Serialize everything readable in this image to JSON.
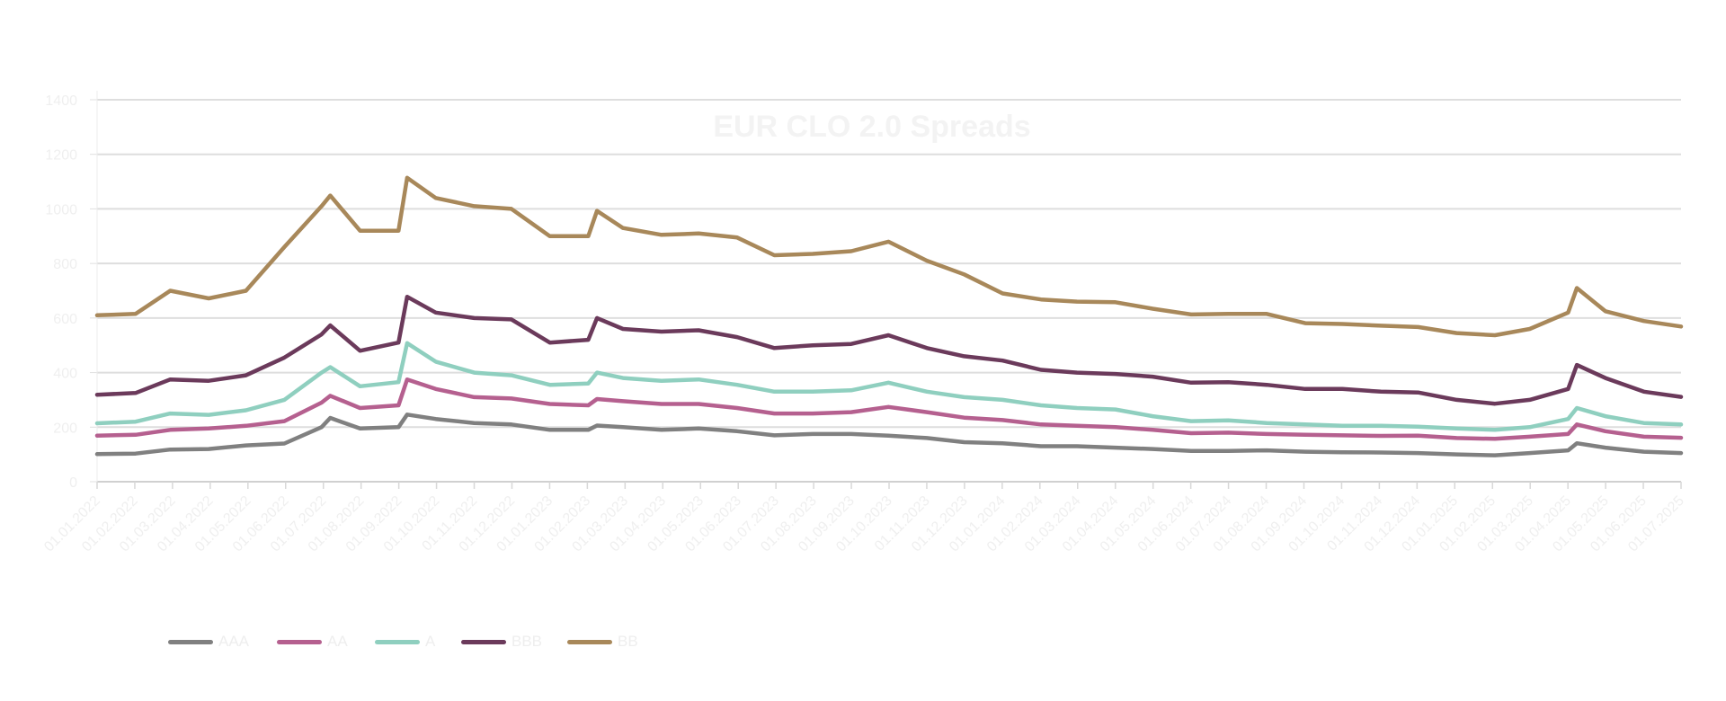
{
  "chart_data": {
    "type": "line",
    "title": "EUR CLO 2.0 Spreads",
    "xlabel": "",
    "ylabel": "",
    "ylim": [
      0,
      1400
    ],
    "yticks": [
      "0",
      "200",
      "400",
      "600",
      "800",
      "1000",
      "1200",
      "1400"
    ],
    "xticks": [
      "01.01.2022",
      "01.02.2022",
      "01.03.2022",
      "01.04.2022",
      "01.05.2022",
      "01.06.2022",
      "01.07.2022",
      "01.08.2022",
      "01.09.2022",
      "01.10.2022",
      "01.11.2022",
      "01.12.2022",
      "01.01.2023",
      "01.02.2023",
      "01.03.2023",
      "01.04.2023",
      "01.05.2023",
      "01.06.2023",
      "01.07.2023",
      "01.08.2023",
      "01.09.2023",
      "01.10.2023",
      "01.11.2023",
      "01.12.2023",
      "01.01.2024",
      "01.02.2024",
      "01.03.2024",
      "01.04.2024",
      "01.05.2024",
      "01.06.2024",
      "01.07.2024",
      "01.08.2024",
      "01.09.2024",
      "01.10.2024",
      "01.11.2024",
      "01.12.2024",
      "01.01.2025",
      "01.02.2025",
      "01.03.2025",
      "01.04.2025",
      "01.05.2025",
      "01.06.2025",
      "01.07.2025"
    ],
    "grid": true,
    "legend_position": "bottom-left",
    "x": [
      "2022-01-01",
      "2022-02-01",
      "2022-03-01",
      "2022-04-01",
      "2022-05-01",
      "2022-06-01",
      "2022-07-01",
      "2022-07-08",
      "2022-08-01",
      "2022-09-01",
      "2022-09-08",
      "2022-10-01",
      "2022-11-01",
      "2022-12-01",
      "2023-01-01",
      "2023-02-01",
      "2023-02-08",
      "2023-03-01",
      "2023-04-01",
      "2023-05-01",
      "2023-06-01",
      "2023-07-01",
      "2023-08-01",
      "2023-09-01",
      "2023-10-01",
      "2023-11-01",
      "2023-12-01",
      "2024-01-01",
      "2024-02-01",
      "2024-03-01",
      "2024-04-01",
      "2024-05-01",
      "2024-06-01",
      "2024-07-01",
      "2024-08-01",
      "2024-09-01",
      "2024-10-01",
      "2024-11-01",
      "2024-12-01",
      "2025-01-01",
      "2025-02-01",
      "2025-03-01",
      "2025-04-01",
      "2025-04-08",
      "2025-05-01",
      "2025-06-01",
      "2025-07-01"
    ],
    "series": [
      {
        "name": "AAA",
        "color": "#808080",
        "values": [
          101,
          103,
          118,
          120,
          133,
          140,
          200,
          234,
          195,
          200,
          246,
          230,
          215,
          210,
          190,
          190,
          206,
          200,
          190,
          195,
          185,
          170,
          175,
          175,
          169,
          160,
          145,
          141,
          130,
          130,
          125,
          120,
          113,
          113,
          115,
          110,
          108,
          107,
          105,
          100,
          97,
          105,
          115,
          141,
          125,
          110,
          105
        ]
      },
      {
        "name": "AA",
        "color": "#b5608f",
        "values": [
          169,
          172,
          190,
          195,
          205,
          222,
          290,
          315,
          270,
          280,
          375,
          340,
          310,
          305,
          285,
          280,
          303,
          295,
          285,
          285,
          270,
          250,
          250,
          255,
          274,
          255,
          235,
          226,
          210,
          205,
          200,
          190,
          178,
          180,
          175,
          172,
          170,
          168,
          169,
          160,
          157,
          165,
          175,
          210,
          185,
          165,
          161
        ]
      },
      {
        "name": "A",
        "color": "#8fcfbf",
        "values": [
          214,
          220,
          250,
          245,
          262,
          300,
          400,
          420,
          350,
          365,
          508,
          440,
          400,
          390,
          355,
          360,
          400,
          380,
          370,
          375,
          355,
          330,
          330,
          335,
          363,
          330,
          310,
          300,
          280,
          270,
          265,
          240,
          222,
          225,
          215,
          210,
          205,
          205,
          202,
          195,
          190,
          200,
          230,
          270,
          240,
          215,
          210
        ]
      },
      {
        "name": "BBB",
        "color": "#6b3a5b",
        "values": [
          319,
          325,
          375,
          370,
          390,
          455,
          540,
          573,
          480,
          510,
          678,
          620,
          600,
          595,
          510,
          520,
          600,
          560,
          550,
          555,
          530,
          490,
          500,
          505,
          537,
          490,
          460,
          444,
          410,
          400,
          395,
          385,
          363,
          365,
          355,
          340,
          340,
          330,
          327,
          300,
          286,
          300,
          340,
          428,
          380,
          330,
          311
        ]
      },
      {
        "name": "BB",
        "color": "#a8885a",
        "values": [
          610,
          615,
          700,
          672,
          700,
          860,
          1010,
          1049,
          920,
          920,
          1114,
          1040,
          1010,
          1000,
          900,
          900,
          993,
          930,
          905,
          910,
          895,
          830,
          835,
          845,
          880,
          810,
          760,
          690,
          668,
          660,
          658,
          634,
          613,
          615,
          615,
          581,
          578,
          572,
          567,
          545,
          537,
          560,
          620,
          710,
          625,
          589,
          569
        ]
      }
    ]
  }
}
